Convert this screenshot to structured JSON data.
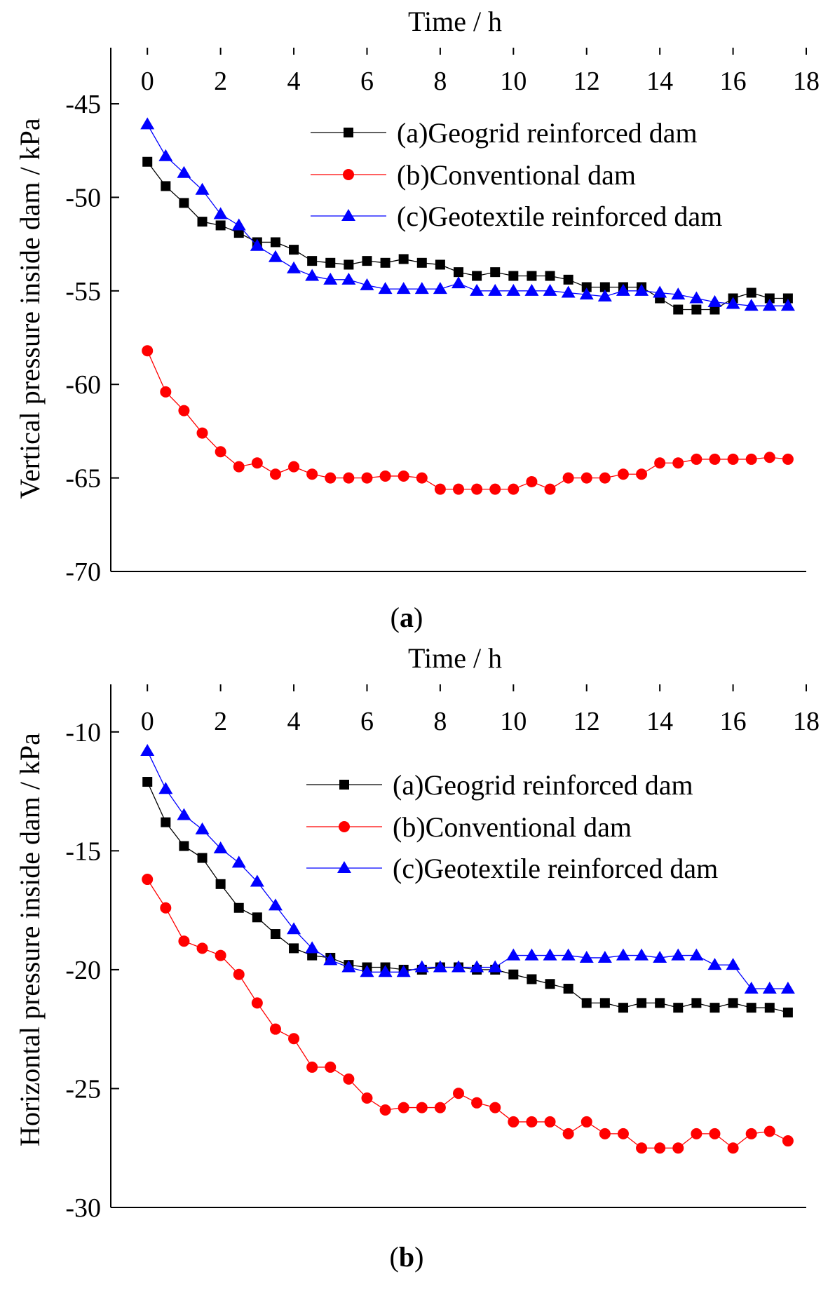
{
  "chart_data": [
    {
      "type": "line",
      "caption": "(a)",
      "xlabel": "Time / h",
      "ylabel": "Vertical pressure inside dam / kPa",
      "xlim": [
        -1,
        18
      ],
      "ylim": [
        -70,
        -42
      ],
      "xticks": [
        0,
        2,
        4,
        6,
        8,
        10,
        12,
        14,
        16,
        18
      ],
      "yticks": [
        -45,
        -50,
        -55,
        -60,
        -65,
        -70
      ],
      "x_axis_position": "top",
      "grid": false,
      "legend_position": "top-right",
      "series": [
        {
          "name": "(a)Geogrid reinforced dam",
          "color": "#000000",
          "marker": "square",
          "x": [
            0,
            0.5,
            1,
            1.5,
            2,
            2.5,
            3,
            3.5,
            4,
            4.5,
            5,
            5.5,
            6,
            6.5,
            7,
            7.5,
            8,
            8.5,
            9,
            9.5,
            10,
            10.5,
            11,
            11.5,
            12,
            12.5,
            13,
            13.5,
            14,
            14.5,
            15,
            15.5,
            16,
            16.5,
            17,
            17.5
          ],
          "y": [
            -48.1,
            -49.4,
            -50.3,
            -51.3,
            -51.5,
            -51.9,
            -52.4,
            -52.4,
            -52.8,
            -53.4,
            -53.5,
            -53.6,
            -53.4,
            -53.5,
            -53.3,
            -53.5,
            -53.6,
            -54.0,
            -54.2,
            -54.0,
            -54.2,
            -54.2,
            -54.2,
            -54.4,
            -54.8,
            -54.8,
            -54.8,
            -54.8,
            -55.4,
            -56.0,
            -56.0,
            -56.0,
            -55.4,
            -55.1,
            -55.4,
            -55.4
          ]
        },
        {
          "name": "(b)Conventional dam",
          "color": "#ff0000",
          "marker": "circle",
          "x": [
            0,
            0.5,
            1,
            1.5,
            2,
            2.5,
            3,
            3.5,
            4,
            4.5,
            5,
            5.5,
            6,
            6.5,
            7,
            7.5,
            8,
            8.5,
            9,
            9.5,
            10,
            10.5,
            11,
            11.5,
            12,
            12.5,
            13,
            13.5,
            14,
            14.5,
            15,
            15.5,
            16,
            16.5,
            17,
            17.5
          ],
          "y": [
            -58.2,
            -60.4,
            -61.4,
            -62.6,
            -63.6,
            -64.4,
            -64.2,
            -64.8,
            -64.4,
            -64.8,
            -65.0,
            -65.0,
            -65.0,
            -64.9,
            -64.9,
            -65.0,
            -65.6,
            -65.6,
            -65.6,
            -65.6,
            -65.6,
            -65.2,
            -65.6,
            -65.0,
            -65.0,
            -65.0,
            -64.8,
            -64.8,
            -64.2,
            -64.2,
            -64.0,
            -64.0,
            -64.0,
            -64.0,
            -63.9,
            -64.0
          ]
        },
        {
          "name": "(c)Geotextile  reinforced dam",
          "color": "#0000ff",
          "marker": "triangle",
          "x": [
            0,
            0.5,
            1,
            1.5,
            2,
            2.5,
            3,
            3.5,
            4,
            4.5,
            5,
            5.5,
            6,
            6.5,
            7,
            7.5,
            8,
            8.5,
            9,
            9.5,
            10,
            10.5,
            11,
            11.5,
            12,
            12.5,
            13,
            13.5,
            14,
            14.5,
            15,
            15.5,
            16,
            16.5,
            17,
            17.5
          ],
          "y": [
            -46.1,
            -47.8,
            -48.7,
            -49.6,
            -50.9,
            -51.5,
            -52.6,
            -53.2,
            -53.8,
            -54.2,
            -54.4,
            -54.4,
            -54.7,
            -54.9,
            -54.9,
            -54.9,
            -54.9,
            -54.6,
            -55.0,
            -55.0,
            -55.0,
            -55.0,
            -55.0,
            -55.1,
            -55.2,
            -55.3,
            -55.0,
            -55.0,
            -55.1,
            -55.2,
            -55.4,
            -55.6,
            -55.7,
            -55.8,
            -55.8,
            -55.8
          ]
        }
      ]
    },
    {
      "type": "line",
      "caption": "(b)",
      "xlabel": "Time / h",
      "ylabel": "Horizontal pressure inside dam / kPa",
      "xlim": [
        -1,
        18
      ],
      "ylim": [
        -30,
        -8
      ],
      "xticks": [
        0,
        2,
        4,
        6,
        8,
        10,
        12,
        14,
        16,
        18
      ],
      "yticks": [
        -10,
        -15,
        -20,
        -25,
        -30
      ],
      "x_axis_position": "top",
      "grid": false,
      "legend_position": "top-right",
      "series": [
        {
          "name": "(a)Geogrid reinforced dam",
          "color": "#000000",
          "marker": "square",
          "x": [
            0,
            0.5,
            1,
            1.5,
            2,
            2.5,
            3,
            3.5,
            4,
            4.5,
            5,
            5.5,
            6,
            6.5,
            7,
            7.5,
            8,
            8.5,
            9,
            9.5,
            10,
            10.5,
            11,
            11.5,
            12,
            12.5,
            13,
            13.5,
            14,
            14.5,
            15,
            15.5,
            16,
            16.5,
            17,
            17.5
          ],
          "y": [
            -12.1,
            -13.8,
            -14.8,
            -15.3,
            -16.4,
            -17.4,
            -17.8,
            -18.5,
            -19.1,
            -19.4,
            -19.5,
            -19.8,
            -19.9,
            -19.9,
            -20.0,
            -20.0,
            -19.9,
            -19.9,
            -20.0,
            -20.0,
            -20.2,
            -20.4,
            -20.6,
            -20.8,
            -21.4,
            -21.4,
            -21.6,
            -21.4,
            -21.4,
            -21.6,
            -21.4,
            -21.6,
            -21.4,
            -21.6,
            -21.6,
            -21.8
          ]
        },
        {
          "name": "(b)Conventional dam",
          "color": "#ff0000",
          "marker": "circle",
          "x": [
            0,
            0.5,
            1,
            1.5,
            2,
            2.5,
            3,
            3.5,
            4,
            4.5,
            5,
            5.5,
            6,
            6.5,
            7,
            7.5,
            8,
            8.5,
            9,
            9.5,
            10,
            10.5,
            11,
            11.5,
            12,
            12.5,
            13,
            13.5,
            14,
            14.5,
            15,
            15.5,
            16,
            16.5,
            17,
            17.5
          ],
          "y": [
            -16.2,
            -17.4,
            -18.8,
            -19.1,
            -19.4,
            -20.2,
            -21.4,
            -22.5,
            -22.9,
            -24.1,
            -24.1,
            -24.6,
            -25.4,
            -25.9,
            -25.8,
            -25.8,
            -25.8,
            -25.2,
            -25.6,
            -25.8,
            -26.4,
            -26.4,
            -26.4,
            -26.9,
            -26.4,
            -26.9,
            -26.9,
            -27.5,
            -27.5,
            -27.5,
            -26.9,
            -26.9,
            -27.5,
            -26.9,
            -26.8,
            -27.2
          ]
        },
        {
          "name": "(c)Geotextile  reinforced dam",
          "color": "#0000ff",
          "marker": "triangle",
          "x": [
            0,
            0.5,
            1,
            1.5,
            2,
            2.5,
            3,
            3.5,
            4,
            4.5,
            5,
            5.5,
            6,
            6.5,
            7,
            7.5,
            8,
            8.5,
            9,
            9.5,
            10,
            10.5,
            11,
            11.5,
            12,
            12.5,
            13,
            13.5,
            14,
            14.5,
            15,
            15.5,
            16,
            16.5,
            17,
            17.5
          ],
          "y": [
            -10.8,
            -12.4,
            -13.5,
            -14.1,
            -14.9,
            -15.5,
            -16.3,
            -17.3,
            -18.3,
            -19.1,
            -19.6,
            -19.9,
            -20.1,
            -20.1,
            -20.1,
            -19.9,
            -19.9,
            -19.9,
            -19.9,
            -19.9,
            -19.4,
            -19.4,
            -19.4,
            -19.4,
            -19.5,
            -19.5,
            -19.4,
            -19.4,
            -19.5,
            -19.4,
            -19.4,
            -19.8,
            -19.8,
            -20.8,
            -20.8,
            -20.8
          ]
        }
      ]
    }
  ]
}
